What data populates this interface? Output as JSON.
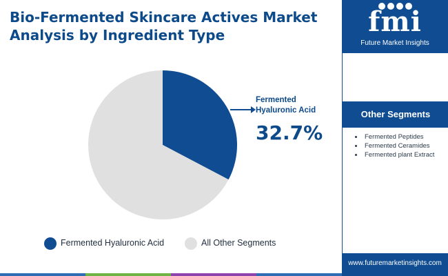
{
  "title": "Bio-Fermented Skincare Actives Market Analysis by Ingredient Type",
  "chart_data": {
    "type": "pie",
    "slices": [
      {
        "label": "Fermented Hyaluronic Acid",
        "value": 32.7,
        "color": "#0f4c92"
      },
      {
        "label": "All Other Segments",
        "value": 67.3,
        "color": "#e0e0e0"
      }
    ],
    "start_angle": "12 o'clock, clockwise",
    "legend": "bottom"
  },
  "callout": {
    "label": "Fermented Hyaluronic Acid",
    "value": "32.7%"
  },
  "legend": {
    "items": [
      {
        "label": "Fermented Hyaluronic Acid",
        "color": "#0f4c92"
      },
      {
        "label": "All Other Segments",
        "color": "#e0e0e0"
      }
    ]
  },
  "brand": {
    "logo_text": "fmi",
    "logo_subtitle": "Future Market Insights",
    "website": "www.futuremarketinsights.com"
  },
  "sidebar": {
    "heading": "Other Segments",
    "items": [
      "Fermented Peptides",
      "Fermented Ceramides",
      "Fermented plant Extract"
    ]
  },
  "colors": {
    "brand_blue": "#0f4c92",
    "footer_stripe": [
      "#2e6db4",
      "#6fb344",
      "#8e44ad",
      "#2e6db4"
    ]
  }
}
